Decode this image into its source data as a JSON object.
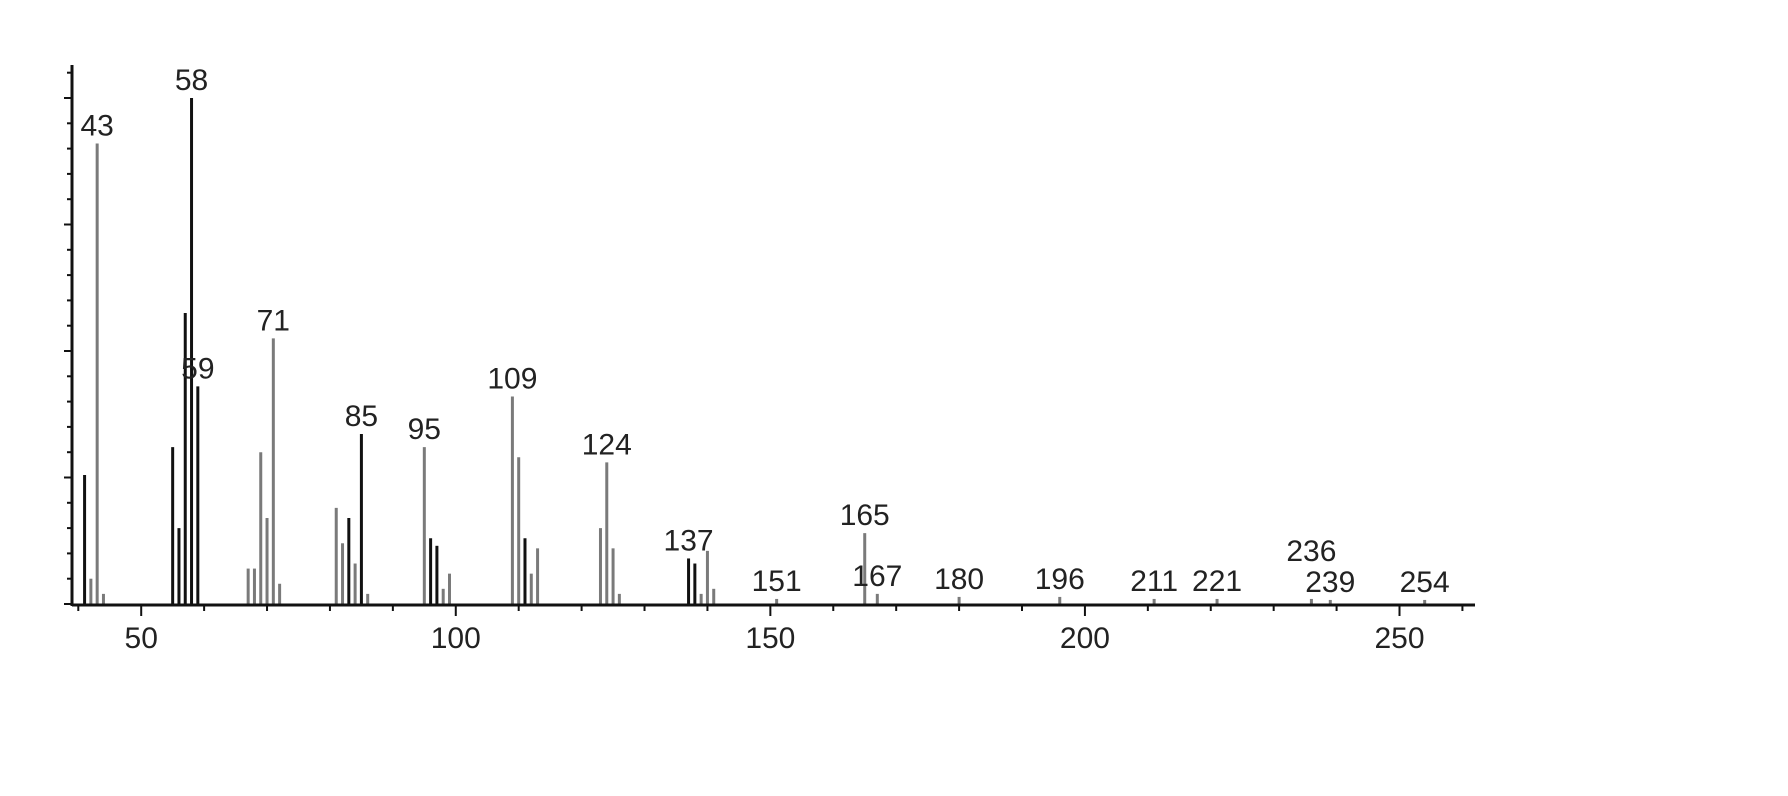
{
  "chart_data": {
    "type": "bar",
    "title": "",
    "xlabel": "",
    "ylabel": "",
    "xlim": [
      39,
      262
    ],
    "ylim": [
      0,
      105
    ],
    "grid": false,
    "x_ticks": [
      50,
      100,
      150,
      200,
      250
    ],
    "colors": {
      "dark": "#111111",
      "gray": "#7a7a7a",
      "axis": "#111111"
    },
    "peaks": [
      {
        "mz": 41,
        "intensity": 25.5,
        "shade": "dark"
      },
      {
        "mz": 42,
        "intensity": 5,
        "shade": "gray"
      },
      {
        "mz": 43,
        "intensity": 91,
        "shade": "gray",
        "label": "43"
      },
      {
        "mz": 44,
        "intensity": 2,
        "shade": "gray"
      },
      {
        "mz": 55,
        "intensity": 31,
        "shade": "dark"
      },
      {
        "mz": 56,
        "intensity": 15,
        "shade": "dark"
      },
      {
        "mz": 57,
        "intensity": 57.5,
        "shade": "dark"
      },
      {
        "mz": 58,
        "intensity": 100,
        "shade": "dark",
        "label": "58"
      },
      {
        "mz": 59,
        "intensity": 43,
        "shade": "dark",
        "label": "59"
      },
      {
        "mz": 67,
        "intensity": 7,
        "shade": "gray"
      },
      {
        "mz": 68,
        "intensity": 7,
        "shade": "gray"
      },
      {
        "mz": 69,
        "intensity": 30,
        "shade": "gray"
      },
      {
        "mz": 70,
        "intensity": 17,
        "shade": "gray"
      },
      {
        "mz": 71,
        "intensity": 52.5,
        "shade": "gray",
        "label": "71"
      },
      {
        "mz": 72,
        "intensity": 4,
        "shade": "gray"
      },
      {
        "mz": 81,
        "intensity": 19,
        "shade": "gray"
      },
      {
        "mz": 82,
        "intensity": 12,
        "shade": "gray"
      },
      {
        "mz": 83,
        "intensity": 17,
        "shade": "dark"
      },
      {
        "mz": 84,
        "intensity": 8,
        "shade": "gray"
      },
      {
        "mz": 85,
        "intensity": 33.6,
        "shade": "dark",
        "label": "85"
      },
      {
        "mz": 86,
        "intensity": 2,
        "shade": "gray"
      },
      {
        "mz": 95,
        "intensity": 31,
        "shade": "gray",
        "label": "95"
      },
      {
        "mz": 96,
        "intensity": 13,
        "shade": "dark"
      },
      {
        "mz": 97,
        "intensity": 11.5,
        "shade": "dark"
      },
      {
        "mz": 98,
        "intensity": 3,
        "shade": "gray"
      },
      {
        "mz": 99,
        "intensity": 6,
        "shade": "gray"
      },
      {
        "mz": 109,
        "intensity": 41,
        "shade": "gray",
        "label": "109"
      },
      {
        "mz": 110,
        "intensity": 29,
        "shade": "gray"
      },
      {
        "mz": 111,
        "intensity": 13,
        "shade": "dark"
      },
      {
        "mz": 112,
        "intensity": 6,
        "shade": "gray"
      },
      {
        "mz": 113,
        "intensity": 11,
        "shade": "gray"
      },
      {
        "mz": 123,
        "intensity": 15,
        "shade": "gray"
      },
      {
        "mz": 124,
        "intensity": 28,
        "shade": "gray",
        "label": "124"
      },
      {
        "mz": 125,
        "intensity": 11,
        "shade": "gray"
      },
      {
        "mz": 126,
        "intensity": 2,
        "shade": "gray"
      },
      {
        "mz": 137,
        "intensity": 9,
        "shade": "dark",
        "label": "137"
      },
      {
        "mz": 138,
        "intensity": 8,
        "shade": "dark"
      },
      {
        "mz": 139,
        "intensity": 2,
        "shade": "gray"
      },
      {
        "mz": 140,
        "intensity": 10.5,
        "shade": "gray"
      },
      {
        "mz": 141,
        "intensity": 3,
        "shade": "gray"
      },
      {
        "mz": 151,
        "intensity": 1,
        "shade": "gray",
        "label": "151"
      },
      {
        "mz": 165,
        "intensity": 14,
        "shade": "gray",
        "label": "165"
      },
      {
        "mz": 167,
        "intensity": 2,
        "shade": "gray",
        "label": "167"
      },
      {
        "mz": 180,
        "intensity": 1.4,
        "shade": "gray",
        "label": "180"
      },
      {
        "mz": 196,
        "intensity": 1.4,
        "shade": "gray",
        "label": "196"
      },
      {
        "mz": 211,
        "intensity": 1,
        "shade": "gray",
        "label": "211"
      },
      {
        "mz": 221,
        "intensity": 1,
        "shade": "gray",
        "label": "221"
      },
      {
        "mz": 236,
        "intensity": 1,
        "shade": "gray",
        "label": "236"
      },
      {
        "mz": 239,
        "intensity": 0.8,
        "shade": "gray",
        "label": "239"
      },
      {
        "mz": 254,
        "intensity": 0.8,
        "shade": "gray",
        "label": "254"
      }
    ]
  }
}
